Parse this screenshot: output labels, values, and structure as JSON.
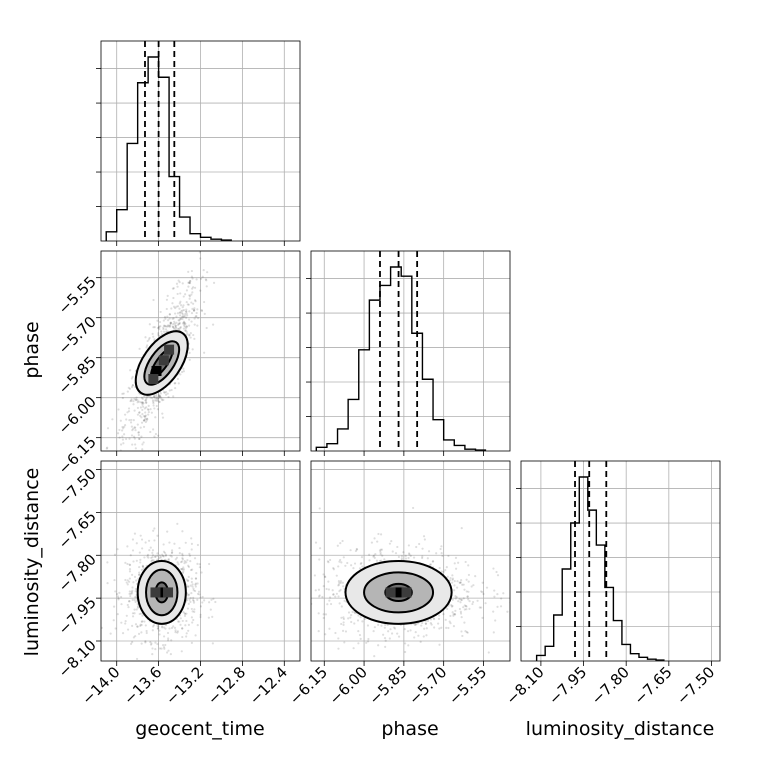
{
  "chart_data": {
    "type": "corner",
    "parameters": [
      "geocent_time",
      "phase",
      "luminosity_distance"
    ],
    "axis_labels": {
      "x": [
        "geocent_time",
        "phase",
        "luminosity_distance"
      ],
      "y": [
        "phase",
        "luminosity_distance"
      ]
    },
    "grid": true,
    "quantile_lines": "dashed",
    "ranges": {
      "geocent_time": [
        -14.15,
        -12.25
      ],
      "phase": [
        -6.2,
        -5.45
      ],
      "luminosity_distance": [
        -8.17,
        -7.47
      ]
    },
    "ticks": {
      "geocent_time": [
        "−14.0",
        "−13.6",
        "−13.2",
        "−12.8",
        "−12.4"
      ],
      "phase": [
        "−6.15",
        "−6.00",
        "−5.85",
        "−5.70",
        "−5.55"
      ],
      "luminosity_distance": [
        "−8.10",
        "−7.95",
        "−7.80",
        "−7.65",
        "−7.50"
      ]
    },
    "tick_values": {
      "geocent_time": [
        -14.0,
        -13.6,
        -13.2,
        -12.8,
        -12.4
      ],
      "phase": [
        -6.15,
        -6.0,
        -5.85,
        -5.7,
        -5.55
      ],
      "luminosity_distance": [
        -8.1,
        -7.95,
        -7.8,
        -7.65,
        -7.5
      ]
    },
    "quantiles": {
      "geocent_time": [
        -13.73,
        -13.6,
        -13.45
      ],
      "phase": [
        -5.94,
        -5.87,
        -5.8
      ],
      "luminosity_distance": [
        -7.98,
        -7.93,
        -7.87
      ]
    },
    "histograms": {
      "geocent_time": {
        "bin_centers": [
          -14.05,
          -13.95,
          -13.85,
          -13.75,
          -13.65,
          -13.55,
          -13.45,
          -13.35,
          -13.25,
          -13.15,
          -13.05,
          -12.95
        ],
        "counts": [
          0.05,
          0.17,
          0.53,
          0.86,
          1.0,
          0.89,
          0.35,
          0.13,
          0.04,
          0.02,
          0.01,
          0.005
        ]
      },
      "phase": {
        "bin_centers": [
          -6.16,
          -6.12,
          -6.08,
          -6.04,
          -6.0,
          -5.96,
          -5.92,
          -5.88,
          -5.84,
          -5.8,
          -5.76,
          -5.72,
          -5.68,
          -5.64,
          -5.6,
          -5.56
        ],
        "counts": [
          0.02,
          0.04,
          0.12,
          0.28,
          0.55,
          0.82,
          0.9,
          1.0,
          0.95,
          0.64,
          0.39,
          0.17,
          0.06,
          0.03,
          0.01,
          0.005
        ]
      },
      "luminosity_distance": {
        "bin_centers": [
          -8.1,
          -8.07,
          -8.04,
          -8.01,
          -7.98,
          -7.95,
          -7.92,
          -7.89,
          -7.86,
          -7.83,
          -7.8,
          -7.77,
          -7.74,
          -7.71,
          -7.68
        ],
        "counts": [
          0.03,
          0.08,
          0.25,
          0.5,
          0.75,
          1.0,
          0.82,
          0.63,
          0.4,
          0.22,
          0.09,
          0.04,
          0.02,
          0.01,
          0.005
        ]
      }
    },
    "joint": [
      {
        "x": "geocent_time",
        "y": "phase",
        "center": [
          -13.57,
          -5.87
        ],
        "contour_radii": [
          [
            0.07,
            0.06
          ],
          [
            0.15,
            0.09
          ],
          [
            0.24,
            0.13
          ]
        ],
        "orientation": "positive-correlation",
        "density_cells": [
          [
            -13.62,
            -5.9
          ],
          [
            -13.55,
            -5.86
          ],
          [
            -13.5,
            -5.82
          ],
          [
            -13.65,
            -5.93
          ]
        ]
      },
      {
        "x": "geocent_time",
        "y": "luminosity_distance",
        "center": [
          -13.57,
          -7.93
        ],
        "contour_radii": [
          [
            0.06,
            0.035
          ],
          [
            0.15,
            0.08
          ],
          [
            0.23,
            0.11
          ]
        ],
        "orientation": "none",
        "density_cells": [
          [
            -13.57,
            -7.93
          ],
          [
            -13.51,
            -7.93
          ],
          [
            -13.63,
            -7.93
          ]
        ]
      },
      {
        "x": "phase",
        "y": "luminosity_distance",
        "center": [
          -5.87,
          -7.93
        ],
        "contour_radii": [
          [
            0.05,
            0.03
          ],
          [
            0.13,
            0.07
          ],
          [
            0.2,
            0.11
          ]
        ],
        "orientation": "none",
        "density_cells": [
          [
            -5.87,
            -7.93
          ],
          [
            -5.84,
            -7.93
          ],
          [
            -5.9,
            -7.93
          ]
        ]
      }
    ]
  }
}
